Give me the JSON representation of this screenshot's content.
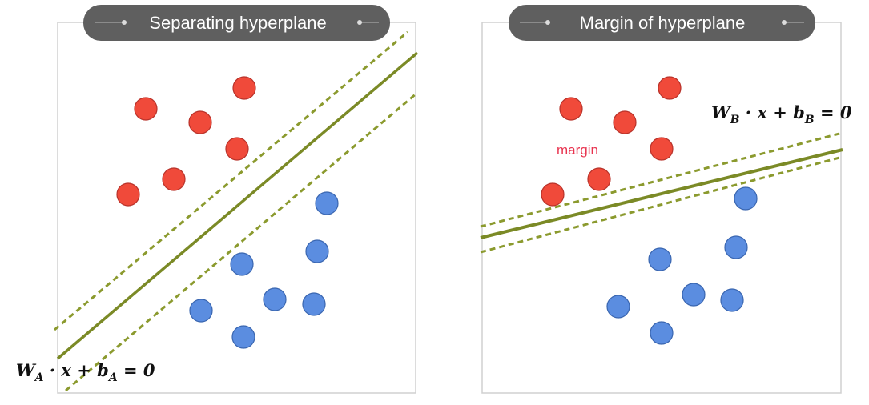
{
  "panels": [
    {
      "title": "Separating hyperplane",
      "equation": {
        "w": "W",
        "w_sub": "A",
        "mid": " · x + ",
        "b": "b",
        "b_sub": "A",
        "rhs": " = 0"
      }
    },
    {
      "title": "Margin of hyperplane",
      "equation": {
        "w": "W",
        "w_sub": "B",
        "mid": " · x + ",
        "b": "b",
        "b_sub": "B",
        "rhs": " = 0"
      },
      "margin_label": "margin"
    }
  ],
  "colors": {
    "red_point": "#f04a3a",
    "red_stroke": "#b8322a",
    "blue_point": "#5b8de0",
    "blue_stroke": "#3a66b0",
    "hyperplane": "#7b8a26",
    "margin_line": "#8b9a2e",
    "pill_bg": "#5f5f5f",
    "panel_border": "#d0d0d0",
    "margin_label": "#e8334f"
  }
}
